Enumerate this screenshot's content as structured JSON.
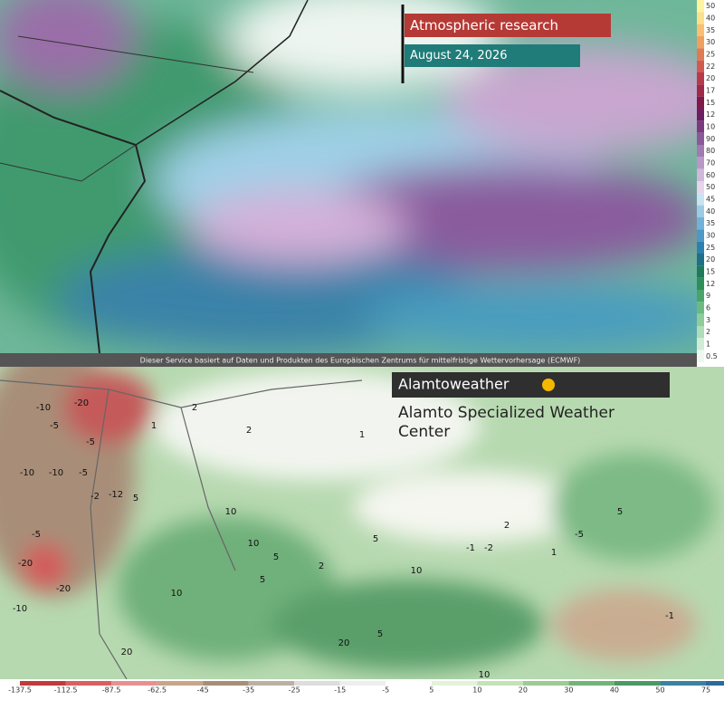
{
  "header": {
    "title": "Atmospheric research",
    "date": "August 24, 2026"
  },
  "credit": "Dieser Service basiert auf Daten und Produkten des Europäischen Zentrums für mittelfristige Wettervorhersage (ECMWF)",
  "brand": {
    "name": "Alamtoweather",
    "center": "Alamto Specialized Weather Center"
  },
  "top_legend": [
    "50",
    "40",
    "35",
    "30",
    "25",
    "22",
    "20",
    "17",
    "15",
    "12",
    "10",
    "90",
    "80",
    "70",
    "60",
    "50",
    "45",
    "40",
    "35",
    "30",
    "25",
    "20",
    "15",
    "12",
    "9",
    "6",
    "3",
    "2",
    "1",
    "0.5"
  ],
  "bottom_legend": [
    "-137.5",
    "-112.5",
    "-87.5",
    "-62.5",
    "-45",
    "-35",
    "-25",
    "-15",
    "-5",
    "5",
    "10",
    "20",
    "30",
    "40",
    "50",
    "75"
  ],
  "contour_labels": [
    "-10",
    "-20",
    "-5",
    "-5",
    "-10",
    "-10",
    "-5",
    "-2",
    "-12",
    "-5",
    "-20",
    "-10",
    "-20",
    "5",
    "1",
    "2",
    "2",
    "1",
    "10",
    "10",
    "5",
    "5",
    "2",
    "10",
    "10",
    "5",
    "20",
    "2",
    "1",
    "-2",
    "-5",
    "-1",
    "5",
    "10",
    "20",
    "5",
    "-1"
  ]
}
